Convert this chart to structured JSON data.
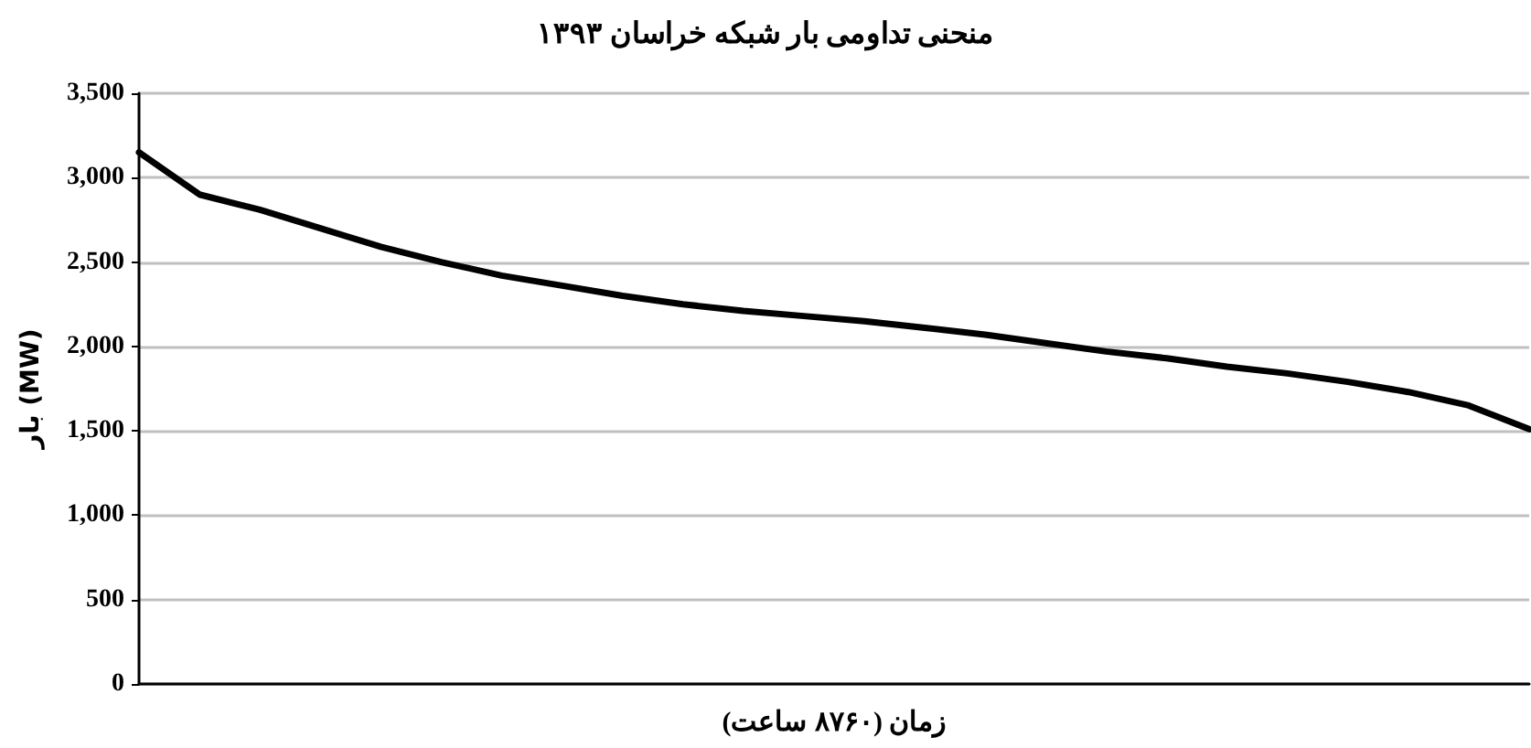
{
  "chart_data": {
    "type": "line",
    "title": "منحنی تداومی بار شبکه خراسان ۱۳۹۳",
    "xlabel": "زمان (۸۷۶۰ ساعت)",
    "ylabel": "بار (MW)",
    "categories": [
      null,
      null,
      null,
      null,
      null,
      null,
      null,
      null,
      null,
      null,
      null,
      null,
      null,
      null,
      null,
      null,
      null,
      null,
      null,
      null,
      null,
      null,
      null,
      null
    ],
    "series": [
      {
        "color": "#000000",
        "values": [
          3150,
          2900,
          2810,
          2700,
          2590,
          2500,
          2420,
          2360,
          2300,
          2250,
          2210,
          2180,
          2150,
          2110,
          2070,
          2020,
          1970,
          1930,
          1880,
          1840,
          1790,
          1730,
          1650,
          1510
        ]
      }
    ],
    "ylim": [
      0,
      3500
    ],
    "yticks": [
      {
        "value": 0,
        "label": "0"
      },
      {
        "value": 500,
        "label": "500"
      },
      {
        "value": 1000,
        "label": "1,000"
      },
      {
        "value": 1500,
        "label": "1,500"
      },
      {
        "value": 2000,
        "label": "2,000"
      },
      {
        "value": 2500,
        "label": "2,500"
      },
      {
        "value": 3000,
        "label": "3,000"
      },
      {
        "value": 3500,
        "label": "3,500"
      }
    ],
    "grid": "y",
    "tick_labels": "y",
    "marker": "none",
    "line_style": "solid"
  }
}
